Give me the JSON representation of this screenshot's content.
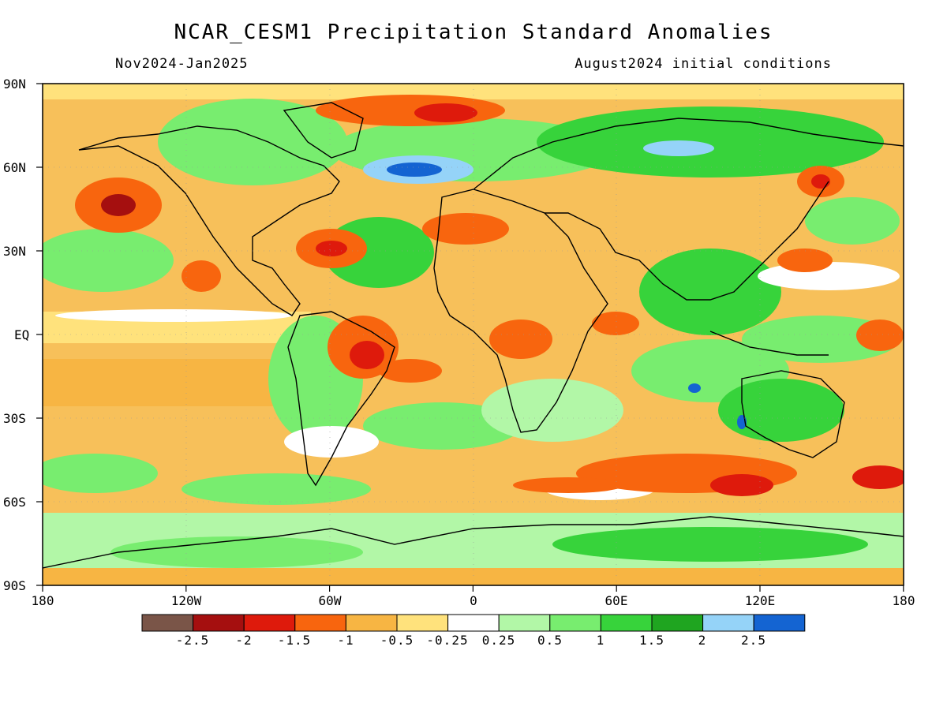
{
  "title": "NCAR_CESM1 Precipitation Standard Anomalies",
  "subtitle_left": "Nov2024-Jan2025",
  "subtitle_right": "August2024 initial conditions",
  "lat_labels": [
    "90N",
    "60N",
    "30N",
    "EQ",
    "30S",
    "60S",
    "90S"
  ],
  "lon_labels": [
    "180",
    "120W",
    "60W",
    "0",
    "60E",
    "120E",
    "180"
  ],
  "colorbar": {
    "labels": [
      "-2.5",
      "-2",
      "-1.5",
      "-1",
      "-0.5",
      "-0.25",
      "0.25",
      "0.5",
      "1",
      "1.5",
      "2",
      "2.5"
    ],
    "colors": [
      "#7a5548",
      "#a50f0f",
      "#de1a0c",
      "#f8650e",
      "#f7b543",
      "#ffe27c",
      "#ffffff",
      "#b2f7a7",
      "#78ed6f",
      "#37d33b",
      "#1fa520",
      "#95d3f8",
      "#1464d2"
    ]
  },
  "colors": {
    "ocean_base": "#fbd97c",
    "land_outline": "#000000"
  }
}
